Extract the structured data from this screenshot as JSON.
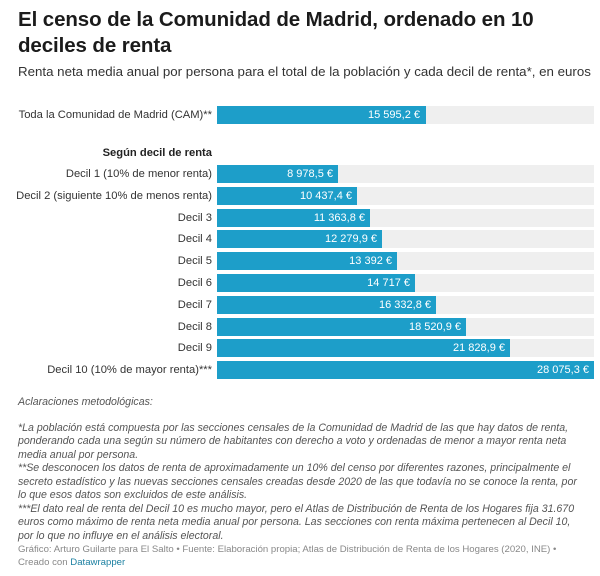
{
  "header": {
    "title": "El censo de la Comunidad de Madrid, ordenado en 10 deciles de renta",
    "subtitle": "Renta neta media anual por persona para el total de la población y cada decil de renta*, en euros"
  },
  "chart_data": {
    "type": "bar",
    "orientation": "horizontal",
    "title": "El censo de la Comunidad de Madrid, ordenado en 10 deciles de renta",
    "subtitle": "Renta neta media anual por persona para el total de la población y cada decil de renta*, en euros",
    "xlabel": "",
    "ylabel": "",
    "xlim": [
      0,
      28075.3
    ],
    "grid": false,
    "bar_color": "#1d9ec9",
    "background_color": "#efefef",
    "total": {
      "label": "Toda la Comunidad de Madrid (CAM)**",
      "value": 15595.2,
      "display": "15 595,2 €"
    },
    "group_heading": "Según decil de renta",
    "categories": [
      "Decil 1 (10% de menor renta)",
      "Decil 2 (siguiente 10% de menos renta)",
      "Decil 3",
      "Decil 4",
      "Decil 5",
      "Decil 6",
      "Decil 7",
      "Decil 8",
      "Decil 9",
      "Decil 10 (10% de mayor renta)***"
    ],
    "values": [
      8978.5,
      10437.4,
      11363.8,
      12279.9,
      13392,
      14717,
      16332.8,
      18520.9,
      21828.9,
      28075.3
    ],
    "value_labels": [
      "8 978,5 €",
      "10 437,4 €",
      "11 363,8 €",
      "12 279,9 €",
      "13 392 €",
      "14 717 €",
      "16 332,8 €",
      "18 520,9 €",
      "21 828,9 €",
      "28 075,3 €"
    ]
  },
  "notes": {
    "heading": "Aclaraciones metodológicas:",
    "items": [
      "*La población está compuesta por las secciones censales de la Comunidad de Madrid de las que hay datos de renta, ponderando cada una según su número de habitantes con derecho a voto y ordenadas de menor a mayor renta neta media anual por persona.",
      "**Se desconocen los datos de renta de aproximadamente un 10% del censo por diferentes razones, principalmente el secreto estadístico y las nuevas secciones censales creadas desde 2020 de las que todavía no se conoce la renta, por lo que esos datos son excluidos de este análisis.",
      "***El dato real de renta del Decil 10 es mucho mayor, pero el Atlas de Distribución de Renta de los Hogares fija 31.670 euros como máximo de renta neta media anual por persona. Las secciones con renta máxima pertenecen al Decil 10, por lo que no influye en el análisis electoral."
    ]
  },
  "footer": {
    "credit": "Gráfico: Arturo Guilarte para El Salto • Fuente: Elaboración propia; Atlas de Distribución de Renta de los Hogares (2020, INE) •",
    "created_with": "Creado con",
    "link_label": "Datawrapper"
  }
}
